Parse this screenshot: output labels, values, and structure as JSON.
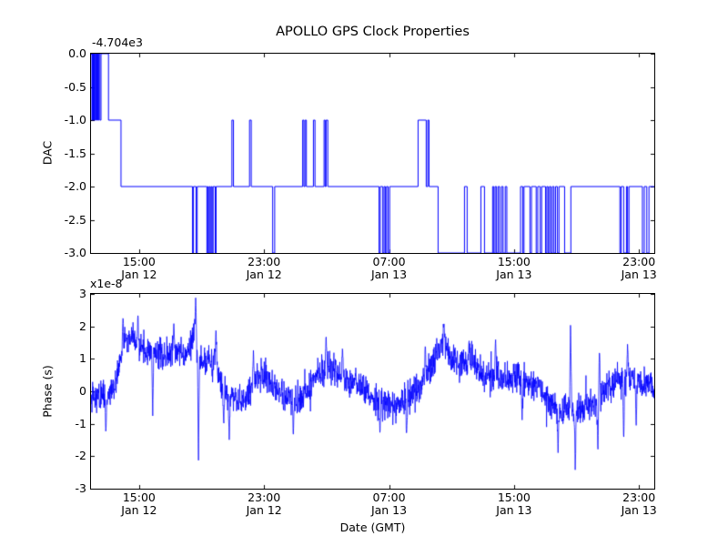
{
  "figure": {
    "title": "APOLLO GPS Clock Properties",
    "xlabel": "Date (GMT)",
    "background_color": "#ffffff",
    "line_color": "#0000ff",
    "axis_color": "#000000",
    "x_axis": {
      "range_hours": [
        0,
        36.06
      ],
      "ticks": [
        {
          "hour": 3.08,
          "time": "15:00",
          "date": "Jan 12"
        },
        {
          "hour": 11.08,
          "time": "23:00",
          "date": "Jan 12"
        },
        {
          "hour": 19.08,
          "time": "07:00",
          "date": "Jan 13"
        },
        {
          "hour": 27.08,
          "time": "15:00",
          "date": "Jan 13"
        },
        {
          "hour": 35.08,
          "time": "23:00",
          "date": "Jan 13"
        }
      ]
    }
  },
  "chart_data": [
    {
      "type": "step",
      "title": "",
      "ylabel": "DAC",
      "offset_text": "-4.704e3",
      "offset_value": -4704,
      "values_relative_to_offset": true,
      "ylim": [
        -3,
        0
      ],
      "yticks": [
        "0.0",
        "-0.5",
        "-1.0",
        "-1.5",
        "-2.0",
        "-2.5",
        "-3.0"
      ],
      "legend": "none",
      "grid": false,
      "steps_hour_value": [
        [
          0.0,
          0
        ],
        [
          0.06,
          -1
        ],
        [
          0.09,
          0
        ],
        [
          0.12,
          -1
        ],
        [
          0.15,
          0
        ],
        [
          0.18,
          -1
        ],
        [
          0.21,
          0
        ],
        [
          0.25,
          -1
        ],
        [
          0.29,
          0
        ],
        [
          0.33,
          -1
        ],
        [
          0.38,
          0
        ],
        [
          0.44,
          -1
        ],
        [
          0.5,
          0
        ],
        [
          0.57,
          -1
        ],
        [
          0.64,
          0
        ],
        [
          1.12,
          -1
        ],
        [
          1.92,
          -2
        ],
        [
          6.5,
          -3
        ],
        [
          6.56,
          -2
        ],
        [
          6.73,
          -3
        ],
        [
          6.8,
          -2
        ],
        [
          7.42,
          -3
        ],
        [
          7.47,
          -2
        ],
        [
          7.52,
          -3
        ],
        [
          7.58,
          -2
        ],
        [
          7.64,
          -3
        ],
        [
          7.7,
          -2
        ],
        [
          7.76,
          -3
        ],
        [
          7.82,
          -2
        ],
        [
          7.95,
          -3
        ],
        [
          8.01,
          -2
        ],
        [
          9.02,
          -1
        ],
        [
          9.12,
          -2
        ],
        [
          10.15,
          -1
        ],
        [
          10.26,
          -2
        ],
        [
          11.63,
          -3
        ],
        [
          11.76,
          -2
        ],
        [
          13.55,
          -1
        ],
        [
          13.63,
          -2
        ],
        [
          13.7,
          -1
        ],
        [
          13.79,
          -2
        ],
        [
          14.24,
          -1
        ],
        [
          14.34,
          -2
        ],
        [
          14.92,
          -1
        ],
        [
          14.99,
          -2
        ],
        [
          15.05,
          -1
        ],
        [
          15.16,
          -2
        ],
        [
          18.44,
          -3
        ],
        [
          18.52,
          -2
        ],
        [
          18.68,
          -3
        ],
        [
          18.76,
          -2
        ],
        [
          18.84,
          -3
        ],
        [
          18.92,
          -2
        ],
        [
          19.02,
          -3
        ],
        [
          19.12,
          -2
        ],
        [
          20.94,
          -1
        ],
        [
          21.46,
          -2
        ],
        [
          21.56,
          -1
        ],
        [
          21.64,
          -2
        ],
        [
          22.22,
          -3
        ],
        [
          23.91,
          -2
        ],
        [
          24.08,
          -3
        ],
        [
          24.96,
          -2
        ],
        [
          25.19,
          -3
        ],
        [
          25.71,
          -2
        ],
        [
          25.79,
          -3
        ],
        [
          25.87,
          -2
        ],
        [
          25.96,
          -3
        ],
        [
          26.06,
          -2
        ],
        [
          26.16,
          -3
        ],
        [
          26.28,
          -2
        ],
        [
          26.38,
          -3
        ],
        [
          26.52,
          -2
        ],
        [
          26.62,
          -3
        ],
        [
          27.5,
          -2
        ],
        [
          27.64,
          -3
        ],
        [
          27.72,
          -2
        ],
        [
          28.1,
          -3
        ],
        [
          28.2,
          -2
        ],
        [
          28.5,
          -3
        ],
        [
          28.6,
          -2
        ],
        [
          28.76,
          -3
        ],
        [
          28.85,
          -2
        ],
        [
          29.1,
          -3
        ],
        [
          29.18,
          -2
        ],
        [
          29.26,
          -3
        ],
        [
          29.35,
          -2
        ],
        [
          29.44,
          -3
        ],
        [
          29.54,
          -2
        ],
        [
          29.64,
          -3
        ],
        [
          29.74,
          -2
        ],
        [
          29.86,
          -3
        ],
        [
          29.96,
          -2
        ],
        [
          30.32,
          -3
        ],
        [
          30.72,
          -2
        ],
        [
          33.86,
          -3
        ],
        [
          33.94,
          -2
        ],
        [
          34.1,
          -3
        ],
        [
          34.28,
          -2
        ],
        [
          34.35,
          -3
        ],
        [
          34.44,
          -2
        ],
        [
          35.3,
          -3
        ],
        [
          35.42,
          -2
        ],
        [
          35.58,
          -3
        ],
        [
          35.72,
          -2
        ]
      ]
    },
    {
      "type": "line",
      "title": "",
      "ylabel": "Phase (s)",
      "multiplier_text": "x1e-8",
      "unit_scale": 1e-08,
      "ylim": [
        -3,
        3
      ],
      "yticks": [
        "3",
        "2",
        "1",
        "0",
        "-1",
        "-2",
        "-3"
      ],
      "legend": "none",
      "grid": false,
      "trend_hour_value": [
        [
          0,
          -0.15
        ],
        [
          0.5,
          -0.2
        ],
        [
          1.0,
          -0.15
        ],
        [
          1.5,
          0.1
        ],
        [
          1.9,
          1.0
        ],
        [
          2.2,
          1.55
        ],
        [
          2.6,
          1.7
        ],
        [
          3.0,
          1.35
        ],
        [
          3.6,
          1.3
        ],
        [
          4.2,
          1.25
        ],
        [
          4.8,
          1.1
        ],
        [
          5.4,
          1.2
        ],
        [
          6.0,
          1.05
        ],
        [
          6.5,
          1.55
        ],
        [
          6.65,
          1.9
        ],
        [
          6.8,
          1.1
        ],
        [
          7.2,
          0.95
        ],
        [
          7.8,
          0.85
        ],
        [
          8.3,
          0.35
        ],
        [
          8.8,
          -0.1
        ],
        [
          9.3,
          -0.3
        ],
        [
          9.9,
          -0.25
        ],
        [
          10.5,
          0.3
        ],
        [
          10.9,
          0.55
        ],
        [
          11.3,
          0.4
        ],
        [
          11.8,
          0.05
        ],
        [
          12.4,
          -0.15
        ],
        [
          12.9,
          -0.3
        ],
        [
          13.5,
          -0.2
        ],
        [
          14.1,
          0.25
        ],
        [
          14.7,
          0.6
        ],
        [
          15.2,
          0.75
        ],
        [
          15.8,
          0.5
        ],
        [
          16.4,
          0.3
        ],
        [
          17.0,
          0.3
        ],
        [
          17.6,
          0.1
        ],
        [
          18.2,
          -0.3
        ],
        [
          18.8,
          -0.4
        ],
        [
          19.4,
          -0.45
        ],
        [
          20.0,
          -0.3
        ],
        [
          20.6,
          -0.1
        ],
        [
          21.2,
          0.3
        ],
        [
          21.8,
          0.8
        ],
        [
          22.3,
          1.35
        ],
        [
          22.6,
          1.55
        ],
        [
          23.0,
          1.1
        ],
        [
          23.5,
          0.85
        ],
        [
          24.0,
          0.8
        ],
        [
          24.4,
          0.95
        ],
        [
          25.0,
          0.5
        ],
        [
          25.6,
          0.45
        ],
        [
          26.2,
          0.5
        ],
        [
          26.8,
          0.35
        ],
        [
          27.4,
          0.4
        ],
        [
          28.0,
          0.25
        ],
        [
          28.6,
          0.1
        ],
        [
          29.2,
          -0.25
        ],
        [
          29.8,
          -0.5
        ],
        [
          30.4,
          -0.55
        ],
        [
          31.0,
          -0.5
        ],
        [
          31.6,
          -0.5
        ],
        [
          32.2,
          -0.35
        ],
        [
          32.8,
          0.0
        ],
        [
          33.4,
          0.25
        ],
        [
          34.0,
          0.35
        ],
        [
          34.6,
          0.4
        ],
        [
          35.2,
          0.3
        ],
        [
          35.7,
          0.3
        ],
        [
          36.06,
          0.2
        ]
      ],
      "spikes_hour_value": [
        [
          0.95,
          -1.3
        ],
        [
          2.05,
          2.35
        ],
        [
          3.0,
          2.4
        ],
        [
          3.95,
          -0.8
        ],
        [
          5.3,
          2.15
        ],
        [
          6.7,
          2.9
        ],
        [
          6.88,
          -2.2
        ],
        [
          8.0,
          2.0
        ],
        [
          8.5,
          -1.05
        ],
        [
          8.85,
          -1.5
        ],
        [
          10.4,
          1.3
        ],
        [
          12.95,
          -1.35
        ],
        [
          15.05,
          1.75
        ],
        [
          16.1,
          1.4
        ],
        [
          18.5,
          -1.35
        ],
        [
          20.2,
          -1.4
        ],
        [
          21.4,
          1.45
        ],
        [
          22.6,
          2.1
        ],
        [
          24.2,
          1.6
        ],
        [
          25.9,
          1.65
        ],
        [
          27.6,
          -0.9
        ],
        [
          29.9,
          -1.9
        ],
        [
          30.7,
          2.2
        ],
        [
          31.0,
          -2.5
        ],
        [
          32.45,
          -1.9
        ],
        [
          32.55,
          1.3
        ],
        [
          34.1,
          -1.6
        ],
        [
          34.35,
          1.5
        ],
        [
          34.9,
          -1.1
        ]
      ],
      "noise": {
        "seed": 20130112,
        "sigma": 0.24,
        "spike_prob": 0.012,
        "spike_scale": 1.0,
        "samples": 2400
      }
    }
  ]
}
